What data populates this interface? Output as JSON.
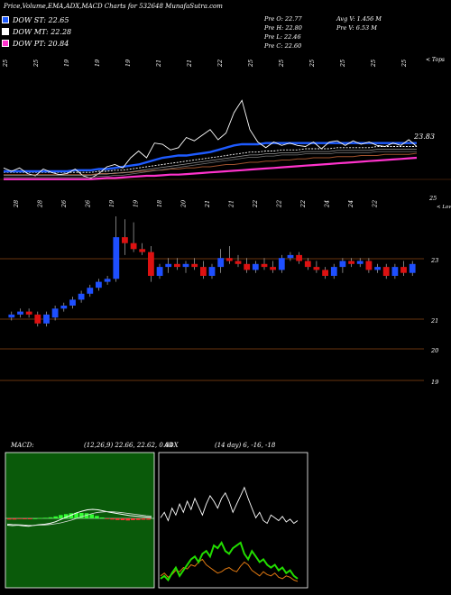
{
  "title": "Price,Volume,EMA,ADX,MACD Charts for 532648 MunafaSutra.com",
  "legend": [
    {
      "label": "DOW ST: 22.65",
      "color": "#1e5bff"
    },
    {
      "label": "DOW MT: 22.28",
      "color": "#ffffff"
    },
    {
      "label": "DOW PT: 20.84",
      "color": "#ff33cc"
    }
  ],
  "stats": {
    "prev_open": "Pre   O: 22.77",
    "prev_high": "Pre   H: 22.80",
    "prev_low": "Pre   L: 22.46",
    "prev_close": "Pre   C: 22.60",
    "avg_vol": "Avg V: 1.456   M",
    "prev_vol": "Pre   V: 6.53   M"
  },
  "colors": {
    "up": "#1e4fff",
    "down": "#dd1111",
    "ema_st": "#1e5bff",
    "ema_pt": "#ff33cc",
    "ema_lt": "#a0522d",
    "adx": "#ffffff",
    "plus_di": "#22dd00",
    "minus_di": "#dd7711",
    "macd_bg": "#0a5a0a"
  },
  "chart_data": [
    {
      "type": "line",
      "name": "price-ema-panel",
      "top_labels": [
        "25",
        "25",
        "19",
        "19",
        "19",
        "21",
        "21",
        "22",
        "25",
        "25",
        "25",
        "25",
        "25",
        "25"
      ],
      "right_top_label": "< Tops",
      "right_value_label": "23.83",
      "series": [
        {
          "name": "Close",
          "values": [
            21.9,
            21.6,
            21.9,
            21.4,
            21.2,
            21.8,
            21.5,
            21.3,
            21.4,
            21.8,
            21.2,
            21.0,
            21.4,
            22.0,
            22.2,
            21.9,
            22.8,
            23.4,
            22.8,
            24.1,
            24.0,
            23.5,
            23.7,
            24.6,
            24.3,
            24.8,
            25.3,
            24.4,
            25.0,
            26.8,
            27.9,
            25.3,
            24.2,
            23.7,
            24.2,
            23.9,
            24.1,
            23.9,
            23.8,
            24.2,
            23.6,
            24.2,
            24.3,
            23.9,
            24.3,
            24.0,
            24.2,
            23.9,
            23.8,
            24.1,
            23.9,
            24.4,
            23.8
          ]
        },
        {
          "name": "EMA ST",
          "values": [
            21.6,
            21.6,
            21.6,
            21.6,
            21.6,
            21.6,
            21.6,
            21.6,
            21.6,
            21.7,
            21.7,
            21.7,
            21.8,
            21.8,
            21.9,
            22.0,
            22.1,
            22.2,
            22.4,
            22.6,
            22.8,
            22.9,
            23.0,
            23.0,
            23.1,
            23.2,
            23.3,
            23.5,
            23.7,
            23.9,
            24.0,
            24.0,
            24.0,
            24.1,
            24.1,
            24.1,
            24.1,
            24.1,
            24.1,
            24.1,
            24.1,
            24.1,
            24.1,
            24.1,
            24.1,
            24.1,
            24.1,
            24.1,
            24.1,
            24.1,
            24.1,
            24.1,
            24.1
          ]
        },
        {
          "name": "EMA MT",
          "values": [
            21.5,
            21.5,
            21.5,
            21.5,
            21.5,
            21.5,
            21.5,
            21.5,
            21.5,
            21.5,
            21.5,
            21.5,
            21.6,
            21.6,
            21.7,
            21.7,
            21.8,
            21.9,
            22.0,
            22.1,
            22.2,
            22.3,
            22.4,
            22.5,
            22.6,
            22.7,
            22.8,
            22.9,
            23.0,
            23.1,
            23.2,
            23.3,
            23.3,
            23.4,
            23.4,
            23.5,
            23.5,
            23.5,
            23.6,
            23.6,
            23.6,
            23.6,
            23.7,
            23.7,
            23.7,
            23.7,
            23.7,
            23.8,
            23.8,
            23.8,
            23.8,
            23.8,
            23.8
          ]
        },
        {
          "name": "EMA LT",
          "values": [
            21.3,
            21.3,
            21.3,
            21.3,
            21.3,
            21.3,
            21.3,
            21.3,
            21.3,
            21.3,
            21.3,
            21.3,
            21.4,
            21.4,
            21.4,
            21.5,
            21.5,
            21.6,
            21.6,
            21.7,
            21.7,
            21.8,
            21.8,
            21.9,
            21.9,
            22.0,
            22.0,
            22.1,
            22.2,
            22.2,
            22.3,
            22.4,
            22.4,
            22.5,
            22.5,
            22.6,
            22.6,
            22.7,
            22.7,
            22.8,
            22.8,
            22.8,
            22.9,
            22.9,
            22.9,
            23.0,
            23.0,
            23.0,
            23.1,
            23.1,
            23.1,
            23.1,
            23.2
          ]
        },
        {
          "name": "DOW PT",
          "values": [
            20.9,
            20.9,
            20.9,
            20.9,
            20.9,
            20.9,
            20.9,
            20.9,
            20.9,
            20.9,
            20.9,
            20.9,
            20.95,
            21.0,
            21.0,
            21.05,
            21.1,
            21.15,
            21.2,
            21.2,
            21.25,
            21.3,
            21.3,
            21.35,
            21.4,
            21.45,
            21.5,
            21.55,
            21.6,
            21.65,
            21.7,
            21.75,
            21.8,
            21.85,
            21.9,
            21.95,
            22.0,
            22.05,
            22.1,
            22.15,
            22.2,
            22.25,
            22.3,
            22.35,
            22.4,
            22.45,
            22.5,
            22.55,
            22.6,
            22.65,
            22.7,
            22.75,
            22.8
          ]
        }
      ]
    },
    {
      "type": "candlestick",
      "name": "candle-panel",
      "bottom_labels": [
        "28",
        "28",
        "26",
        "26",
        "19",
        "19",
        "18",
        "20",
        "21",
        "21",
        "22",
        "22",
        "22",
        "24",
        "24",
        "22"
      ],
      "right_bottom_label": "< Lows",
      "y_ticks": [
        "25",
        "23",
        "21",
        "20",
        "19"
      ],
      "right_tick_label": "25",
      "candles": [
        {
          "o": 21.6,
          "h": 21.8,
          "l": 21.5,
          "c": 21.7
        },
        {
          "o": 21.7,
          "h": 21.9,
          "l": 21.6,
          "c": 21.8
        },
        {
          "o": 21.8,
          "h": 21.9,
          "l": 21.6,
          "c": 21.7
        },
        {
          "o": 21.7,
          "h": 21.8,
          "l": 21.3,
          "c": 21.4
        },
        {
          "o": 21.4,
          "h": 21.8,
          "l": 21.3,
          "c": 21.7
        },
        {
          "o": 21.6,
          "h": 22.0,
          "l": 21.5,
          "c": 21.9
        },
        {
          "o": 21.9,
          "h": 22.1,
          "l": 21.8,
          "c": 22.0
        },
        {
          "o": 22.0,
          "h": 22.3,
          "l": 21.9,
          "c": 22.2
        },
        {
          "o": 22.2,
          "h": 22.5,
          "l": 22.1,
          "c": 22.4
        },
        {
          "o": 22.4,
          "h": 22.7,
          "l": 22.3,
          "c": 22.6
        },
        {
          "o": 22.6,
          "h": 22.9,
          "l": 22.5,
          "c": 22.8
        },
        {
          "o": 22.8,
          "h": 23.0,
          "l": 22.7,
          "c": 22.9
        },
        {
          "o": 22.9,
          "h": 25.0,
          "l": 22.8,
          "c": 24.3
        },
        {
          "o": 24.3,
          "h": 24.9,
          "l": 23.7,
          "c": 24.1
        },
        {
          "o": 24.1,
          "h": 24.8,
          "l": 23.8,
          "c": 23.9
        },
        {
          "o": 23.9,
          "h": 24.1,
          "l": 23.7,
          "c": 23.8
        },
        {
          "o": 23.8,
          "h": 24.0,
          "l": 22.8,
          "c": 23.0
        },
        {
          "o": 23.0,
          "h": 23.4,
          "l": 22.9,
          "c": 23.3
        },
        {
          "o": 23.3,
          "h": 23.6,
          "l": 23.1,
          "c": 23.4
        },
        {
          "o": 23.4,
          "h": 23.6,
          "l": 23.2,
          "c": 23.3
        },
        {
          "o": 23.3,
          "h": 23.5,
          "l": 23.1,
          "c": 23.4
        },
        {
          "o": 23.4,
          "h": 23.6,
          "l": 23.2,
          "c": 23.3
        },
        {
          "o": 23.3,
          "h": 23.5,
          "l": 22.9,
          "c": 23.0
        },
        {
          "o": 23.0,
          "h": 23.4,
          "l": 22.9,
          "c": 23.3
        },
        {
          "o": 23.3,
          "h": 23.9,
          "l": 23.1,
          "c": 23.6
        },
        {
          "o": 23.6,
          "h": 24.0,
          "l": 23.4,
          "c": 23.5
        },
        {
          "o": 23.5,
          "h": 23.7,
          "l": 23.3,
          "c": 23.4
        },
        {
          "o": 23.4,
          "h": 23.6,
          "l": 23.1,
          "c": 23.2
        },
        {
          "o": 23.2,
          "h": 23.5,
          "l": 23.1,
          "c": 23.4
        },
        {
          "o": 23.4,
          "h": 23.6,
          "l": 23.2,
          "c": 23.3
        },
        {
          "o": 23.3,
          "h": 23.5,
          "l": 23.1,
          "c": 23.2
        },
        {
          "o": 23.2,
          "h": 23.7,
          "l": 23.1,
          "c": 23.6
        },
        {
          "o": 23.6,
          "h": 23.8,
          "l": 23.5,
          "c": 23.7
        },
        {
          "o": 23.7,
          "h": 23.8,
          "l": 23.4,
          "c": 23.5
        },
        {
          "o": 23.5,
          "h": 23.6,
          "l": 23.2,
          "c": 23.3
        },
        {
          "o": 23.3,
          "h": 23.5,
          "l": 23.1,
          "c": 23.2
        },
        {
          "o": 23.2,
          "h": 23.3,
          "l": 22.9,
          "c": 23.0
        },
        {
          "o": 23.0,
          "h": 23.4,
          "l": 22.9,
          "c": 23.3
        },
        {
          "o": 23.3,
          "h": 23.6,
          "l": 23.1,
          "c": 23.5
        },
        {
          "o": 23.5,
          "h": 23.6,
          "l": 23.3,
          "c": 23.4
        },
        {
          "o": 23.4,
          "h": 23.6,
          "l": 23.3,
          "c": 23.5
        },
        {
          "o": 23.5,
          "h": 23.6,
          "l": 23.1,
          "c": 23.2
        },
        {
          "o": 23.2,
          "h": 23.4,
          "l": 23.1,
          "c": 23.3
        },
        {
          "o": 23.3,
          "h": 23.4,
          "l": 22.9,
          "c": 23.0
        },
        {
          "o": 23.0,
          "h": 23.4,
          "l": 22.9,
          "c": 23.3
        },
        {
          "o": 23.3,
          "h": 23.5,
          "l": 23.0,
          "c": 23.1
        },
        {
          "o": 23.1,
          "h": 23.5,
          "l": 23.0,
          "c": 23.4
        }
      ]
    },
    {
      "type": "line",
      "name": "macd-panel",
      "title": "MACD",
      "params": "(12,26,9) 22.66,  22.62,  0.04",
      "series": [
        {
          "name": "MACD",
          "values": [
            -0.3,
            -0.32,
            -0.3,
            -0.33,
            -0.35,
            -0.31,
            -0.28,
            -0.26,
            -0.22,
            -0.15,
            -0.05,
            0.05,
            0.15,
            0.25,
            0.32,
            0.38,
            0.4,
            0.38,
            0.33,
            0.28,
            0.24,
            0.2,
            0.16,
            0.12,
            0.1,
            0.08,
            0.06,
            0.04
          ]
        },
        {
          "name": "Signal",
          "values": [
            -0.25,
            -0.27,
            -0.28,
            -0.29,
            -0.31,
            -0.31,
            -0.3,
            -0.29,
            -0.27,
            -0.24,
            -0.2,
            -0.14,
            -0.08,
            0.0,
            0.08,
            0.15,
            0.22,
            0.27,
            0.29,
            0.3,
            0.29,
            0.27,
            0.24,
            0.21,
            0.18,
            0.15,
            0.12,
            0.1
          ]
        }
      ]
    },
    {
      "type": "line",
      "name": "adx-panel",
      "title": "ADX",
      "params": "(14 day) 6,  -16,  -18",
      "series": [
        {
          "name": "ADX",
          "values": [
            48,
            52,
            46,
            55,
            50,
            58,
            52,
            60,
            54,
            62,
            56,
            50,
            58,
            64,
            60,
            55,
            62,
            66,
            60,
            52,
            58,
            64,
            70,
            62,
            55,
            48,
            52,
            46,
            44,
            50,
            48,
            46,
            49,
            45,
            47,
            44,
            46
          ]
        },
        {
          "name": "+DI",
          "values": [
            4,
            6,
            3,
            8,
            12,
            6,
            10,
            14,
            18,
            20,
            16,
            22,
            24,
            20,
            28,
            26,
            30,
            24,
            22,
            26,
            28,
            30,
            22,
            18,
            24,
            20,
            16,
            18,
            14,
            12,
            14,
            10,
            12,
            8,
            10,
            6,
            4
          ]
        },
        {
          "name": "-DI",
          "values": [
            6,
            8,
            5,
            7,
            10,
            9,
            12,
            11,
            14,
            13,
            16,
            18,
            14,
            12,
            10,
            8,
            9,
            11,
            12,
            10,
            9,
            13,
            16,
            14,
            10,
            8,
            6,
            9,
            7,
            6,
            8,
            5,
            4,
            6,
            5,
            3,
            2
          ]
        }
      ]
    }
  ]
}
